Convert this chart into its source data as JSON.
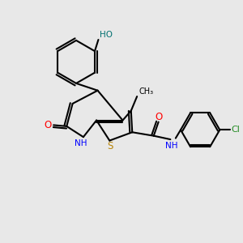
{
  "bg_color": "#e8e8e8",
  "bond_color": "#000000",
  "bond_width": 1.5,
  "figsize": [
    3.0,
    3.0
  ],
  "dpi": 100,
  "xlim": [
    0,
    10
  ],
  "ylim": [
    0,
    10
  ]
}
